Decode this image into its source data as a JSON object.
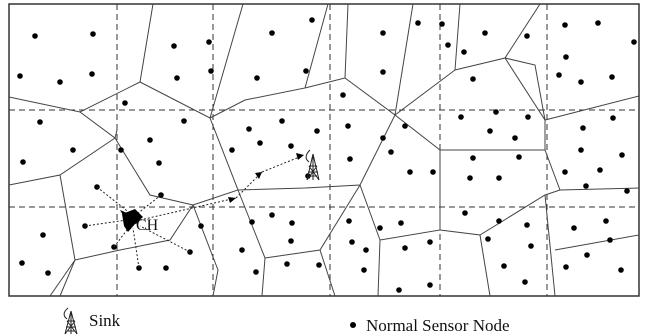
{
  "diagram": {
    "ch_label": "CH"
  },
  "legend": {
    "sink_label": "Sink",
    "normal_node_label": "Normal Sensor Node"
  },
  "icons": {
    "sink": "sink-tower-icon",
    "normal_node": "sensor-dot-icon",
    "cluster_head": "cluster-head-icon"
  },
  "colors": {
    "line": "#333333",
    "node": "#000000"
  }
}
